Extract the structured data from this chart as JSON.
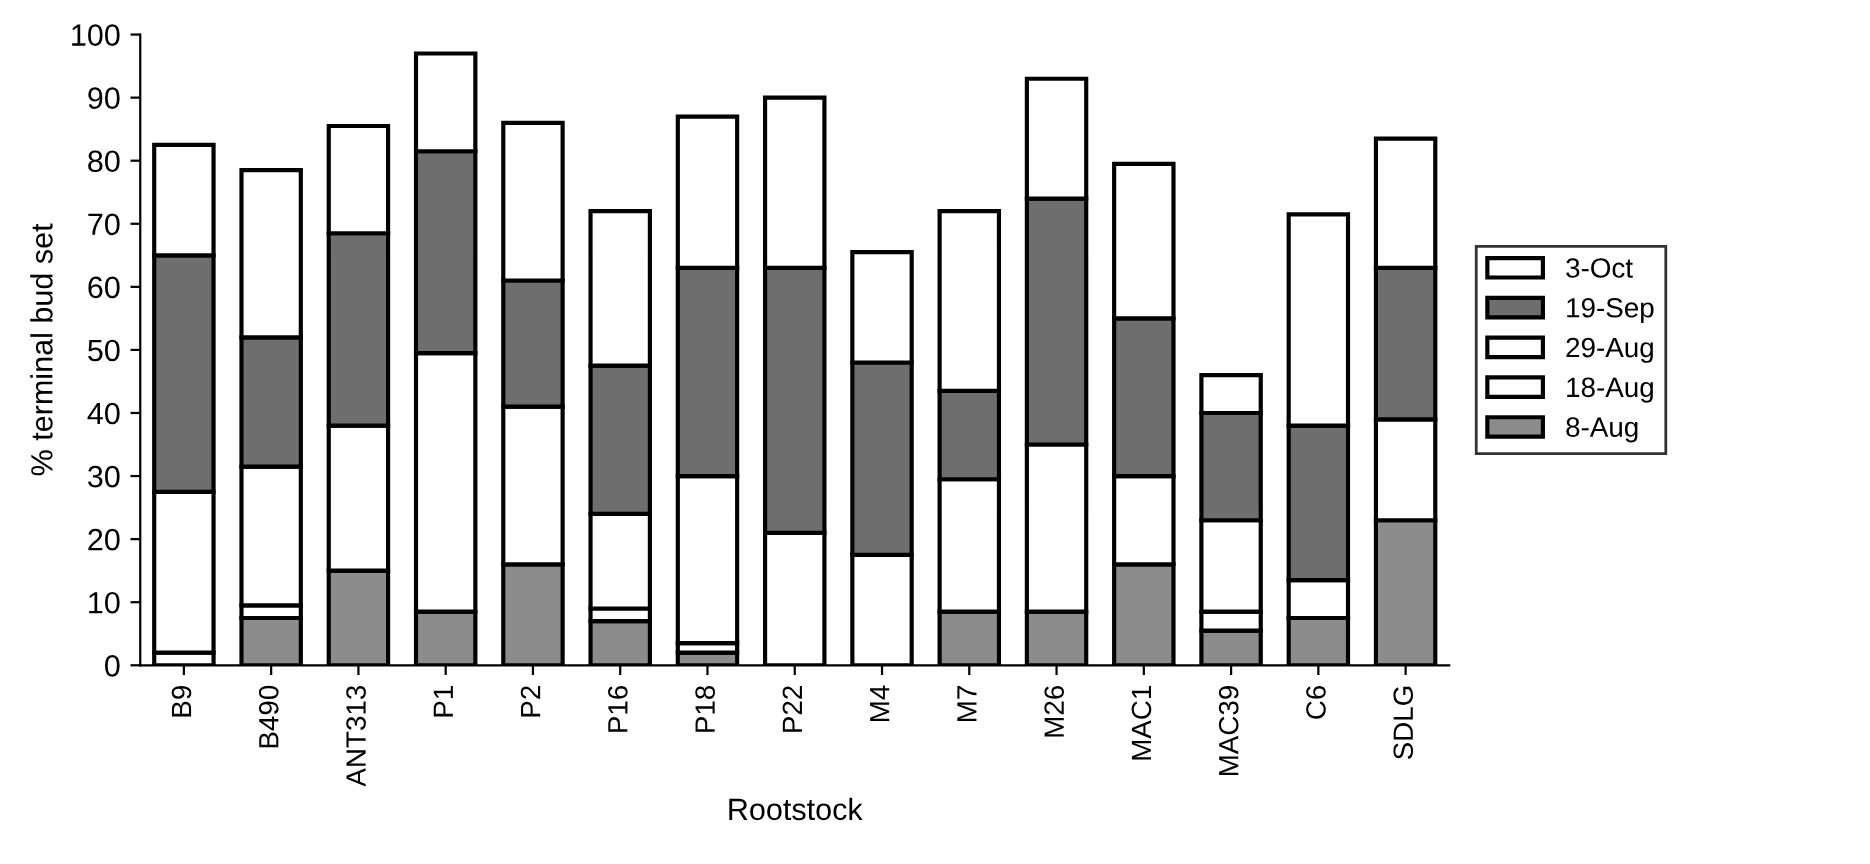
{
  "chart_data": {
    "type": "bar",
    "stacked": true,
    "xlabel": "Rootstock",
    "ylabel": "% terminal bud set",
    "categories": [
      "B9",
      "B490",
      "ANT313",
      "P1",
      "P2",
      "P16",
      "P18",
      "P22",
      "M4",
      "M7",
      "M26",
      "MAC1",
      "MAC39",
      "C6",
      "SDLG"
    ],
    "series": [
      {
        "name": "8-Aug",
        "color": "#8c8c8c",
        "values": [
          0,
          7.5,
          15,
          8.5,
          16,
          7,
          2,
          0,
          0,
          8.5,
          8.5,
          16,
          5.5,
          7.5,
          23
        ]
      },
      {
        "name": "18-Aug",
        "color": "#ffffff",
        "values": [
          2,
          2,
          0,
          0,
          0,
          2,
          1.5,
          0,
          0,
          0,
          0,
          0,
          3,
          0,
          0
        ]
      },
      {
        "name": "29-Aug",
        "color": "#ffffff",
        "values": [
          25.5,
          22,
          23,
          41,
          25,
          15,
          26.5,
          21,
          17.5,
          21,
          26.5,
          14,
          14.5,
          6,
          16
        ]
      },
      {
        "name": "19-Sep",
        "color": "#6e6e6e",
        "values": [
          37.5,
          20.5,
          30.5,
          32,
          20,
          23.5,
          33,
          42,
          30.5,
          14,
          39,
          25,
          17,
          24.5,
          24
        ]
      },
      {
        "name": "3-Oct",
        "color": "#ffffff",
        "values": [
          17.5,
          26.5,
          17,
          15.5,
          25,
          24.5,
          24,
          27,
          17.5,
          28.5,
          19,
          24.5,
          6,
          33.5,
          20.5
        ]
      }
    ],
    "ylim": [
      0,
      100
    ],
    "yticks": [
      0,
      10,
      20,
      30,
      40,
      50,
      60,
      70,
      80,
      90,
      100
    ],
    "grid": false,
    "legend": "right"
  }
}
